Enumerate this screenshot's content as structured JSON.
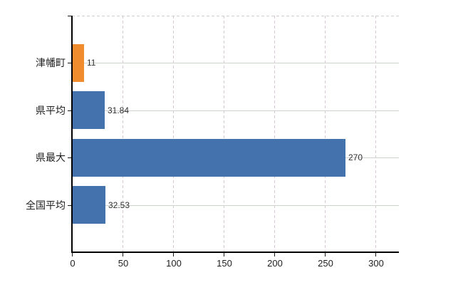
{
  "chart_data": {
    "type": "bar",
    "orientation": "horizontal",
    "title": "",
    "xlabel": "",
    "ylabel": "",
    "categories": [
      "津幡町",
      "県平均",
      "県最大",
      "全国平均"
    ],
    "values": [
      11,
      31.84,
      270,
      32.53
    ],
    "value_labels": [
      "11",
      "31.84",
      "270",
      "32.53"
    ],
    "bar_color_keys": [
      "orange",
      "blue",
      "blue",
      "blue"
    ],
    "x_ticks": [
      0,
      50,
      100,
      150,
      200,
      250,
      300
    ],
    "x_tick_labels": [
      "0",
      "50",
      "100",
      "150",
      "200",
      "250",
      "300"
    ],
    "xlim": [
      0,
      323
    ],
    "grid": true,
    "legend": null
  },
  "colors": {
    "blue": "#4372ac",
    "orange": "#f08c2e",
    "axis": "#000000",
    "grid_horizontal": "#ccd4cc",
    "grid_vertical": "#d4c9d4",
    "border_top": "#d0ccd0",
    "text": "#1f1f1f",
    "background": "#ffffff"
  }
}
